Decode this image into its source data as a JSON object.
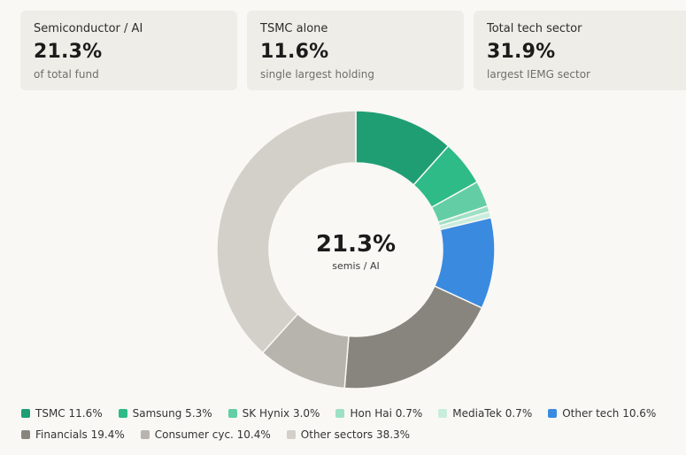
{
  "cards": [
    {
      "label": "Semiconductor / AI",
      "value": "21.3%",
      "sub": "of total fund"
    },
    {
      "label": "TSMC alone",
      "value": "11.6%",
      "sub": "single largest holding"
    },
    {
      "label": "Total tech sector",
      "value": "31.9%",
      "sub": "largest IEMG sector"
    }
  ],
  "chart_data": {
    "type": "pie",
    "variant": "donut",
    "center_value": "21.3%",
    "center_label": "semis / AI",
    "legend_placement": "bottom",
    "start_angle_deg": 0,
    "direction": "clockwise",
    "categories": [
      "TSMC",
      "Samsung",
      "SK Hynix",
      "Hon Hai",
      "MediaTek",
      "Other tech",
      "Financials",
      "Consumer cyc.",
      "Other sectors"
    ],
    "values": [
      11.6,
      5.3,
      3.0,
      0.7,
      0.7,
      10.6,
      19.4,
      10.4,
      38.3
    ],
    "legend_labels": [
      "TSMC 11.6%",
      "Samsung 5.3%",
      "SK Hynix 3.0%",
      "Hon Hai 0.7%",
      "MediaTek 0.7%",
      "Other tech 10.6%",
      "Financials 19.4%",
      "Consumer cyc. 10.4%",
      "Other sectors 38.3%"
    ],
    "colors": [
      "#1f9e74",
      "#2ebb88",
      "#63cea6",
      "#9ee0c6",
      "#c9eddd",
      "#3a8ae0",
      "#87857e",
      "#b6b4ad",
      "#d2d0c9"
    ],
    "legend_rows": [
      6,
      3
    ]
  }
}
